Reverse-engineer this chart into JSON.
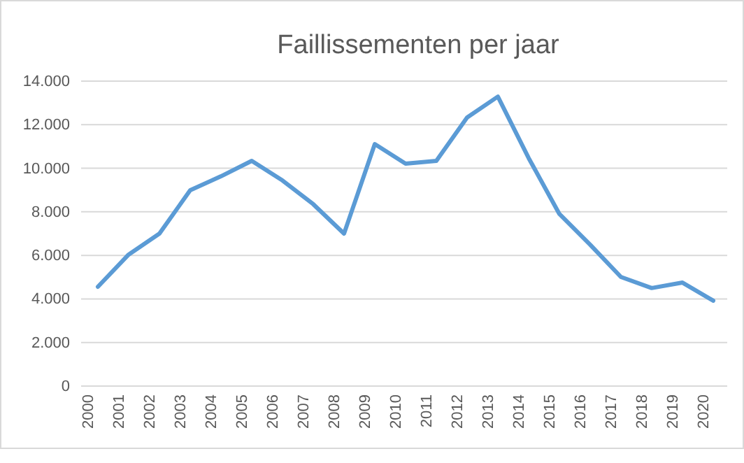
{
  "chart_data": {
    "type": "line",
    "title": "Faillissementen per jaar",
    "categories": [
      "2000",
      "2001",
      "2002",
      "2003",
      "2004",
      "2005",
      "2006",
      "2007",
      "2008",
      "2009",
      "2010",
      "2011",
      "2012",
      "2013",
      "2014",
      "2015",
      "2016",
      "2017",
      "2018",
      "2019",
      "2020"
    ],
    "series": [
      {
        "color": "#5b9bd5",
        "values": [
          4560,
          6040,
          7000,
          8990,
          9630,
          10340,
          9440,
          8350,
          7000,
          11110,
          10210,
          10340,
          12330,
          13290,
          10470,
          7900,
          6490,
          5010,
          4500,
          4750,
          3920
        ]
      }
    ],
    "ylim": [
      0,
      14000
    ],
    "yticks": [
      0,
      {
        "value": 2000,
        "label": "2.000"
      },
      {
        "value": 4000,
        "label": "4.000"
      },
      {
        "value": 6000,
        "label": "6.000"
      },
      {
        "value": 8000,
        "label": "8.000"
      },
      {
        "value": 10000,
        "label": "10.000"
      },
      {
        "value": 12000,
        "label": "12.000"
      },
      {
        "value": 14000,
        "label": "14.000"
      }
    ],
    "grid": "y",
    "marker": "none",
    "line_style": "solid"
  }
}
